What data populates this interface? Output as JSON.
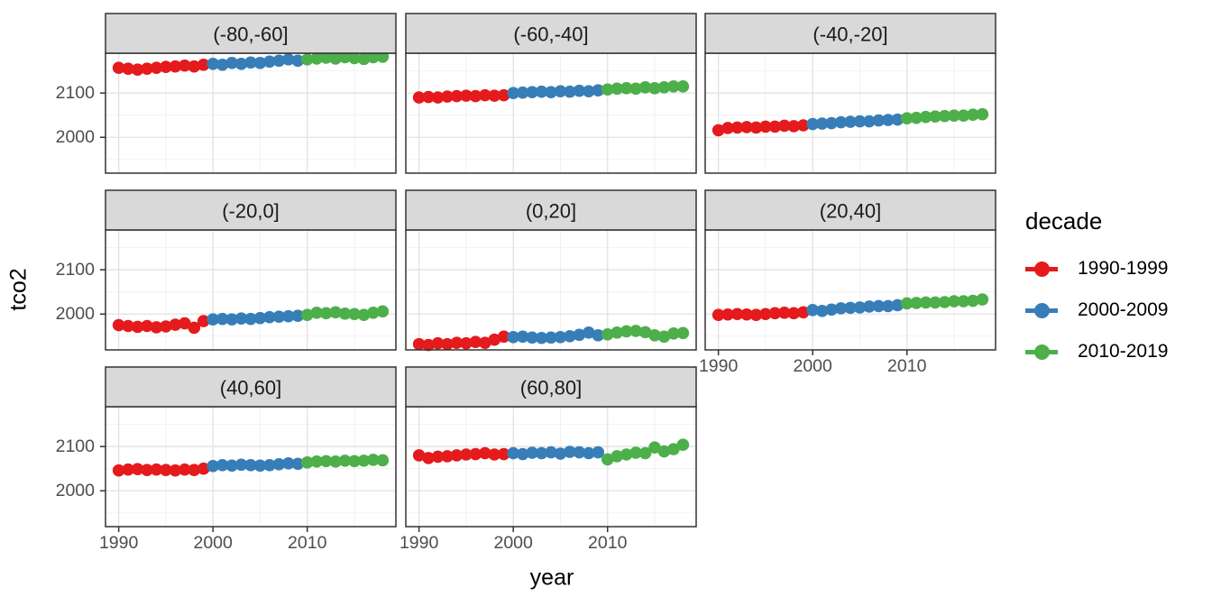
{
  "figure": {
    "x_axis_title": "year",
    "y_axis_title": "tco2"
  },
  "colors": {
    "red": "#E41A1C",
    "blue": "#377EB8",
    "green": "#4DAF4A",
    "strip_bg": "#D9D9D9",
    "strip_text": "#1A1A1A",
    "panel_bg": "#FFFFFF",
    "panel_border": "#333333",
    "grid_major": "#E2E2E2",
    "grid_minor": "#EFEFEF",
    "tick_mark": "#333333",
    "tick_label": "#4D4D4D"
  },
  "chart_data": {
    "type": "scatter",
    "title": "",
    "xlabel": "year",
    "ylabel": "tco2",
    "grid": true,
    "xlim": [
      1988.6,
      2019.4
    ],
    "ylim": [
      1919,
      2190
    ],
    "x_ticks": [
      1990,
      2000,
      2010
    ],
    "x_minor_ticks": [
      1995,
      2005,
      2015
    ],
    "y_ticks": [
      2000,
      2100
    ],
    "y_minor_ticks": [
      1950,
      2050,
      2150
    ],
    "x": [
      1990,
      1991,
      1992,
      1993,
      1994,
      1995,
      1996,
      1997,
      1998,
      1999,
      2000,
      2001,
      2002,
      2003,
      2004,
      2005,
      2006,
      2007,
      2008,
      2009,
      2010,
      2011,
      2012,
      2013,
      2014,
      2015,
      2016,
      2017,
      2018
    ],
    "legend": {
      "title": "decade",
      "position": "right",
      "entries": [
        {
          "label": "1990-1999",
          "color": "#E41A1C",
          "years": [
            1990,
            1999
          ]
        },
        {
          "label": "2000-2009",
          "color": "#377EB8",
          "years": [
            2000,
            2009
          ]
        },
        {
          "label": "2010-2019",
          "color": "#4DAF4A",
          "years": [
            2010,
            2019
          ]
        }
      ]
    },
    "facets": [
      {
        "label": "(-80,-60]",
        "values": [
          2157,
          2155,
          2153,
          2155,
          2157,
          2159,
          2160,
          2162,
          2160,
          2164,
          2166,
          2164,
          2168,
          2166,
          2169,
          2168,
          2171,
          2173,
          2176,
          2173,
          2176,
          2178,
          2180,
          2178,
          2181,
          2179,
          2177,
          2181,
          2182
        ]
      },
      {
        "label": "(-60,-40]",
        "values": [
          2090,
          2091,
          2090,
          2092,
          2093,
          2094,
          2093,
          2095,
          2094,
          2095,
          2100,
          2101,
          2102,
          2103,
          2102,
          2104,
          2103,
          2105,
          2104,
          2106,
          2108,
          2110,
          2111,
          2110,
          2113,
          2111,
          2113,
          2115,
          2115
        ]
      },
      {
        "label": "(-40,-20]",
        "values": [
          2016,
          2021,
          2022,
          2023,
          2022,
          2024,
          2024,
          2026,
          2025,
          2027,
          2030,
          2031,
          2032,
          2034,
          2035,
          2036,
          2036,
          2038,
          2039,
          2040,
          2043,
          2044,
          2046,
          2047,
          2048,
          2049,
          2049,
          2051,
          2052
        ]
      },
      {
        "label": "(-20,0]",
        "values": [
          1975,
          1973,
          1971,
          1973,
          1970,
          1972,
          1976,
          1979,
          1969,
          1984,
          1988,
          1989,
          1988,
          1990,
          1989,
          1991,
          1993,
          1994,
          1995,
          1996,
          1998,
          2003,
          2002,
          2004,
          2001,
          2000,
          1998,
          2003,
          2006
        ]
      },
      {
        "label": "(0,20]",
        "values": [
          1932,
          1930,
          1934,
          1932,
          1935,
          1934,
          1937,
          1935,
          1942,
          1949,
          1948,
          1949,
          1947,
          1946,
          1947,
          1948,
          1950,
          1953,
          1958,
          1952,
          1954,
          1958,
          1961,
          1962,
          1959,
          1952,
          1949,
          1956,
          1957
        ]
      },
      {
        "label": "(20,40]",
        "values": [
          1998,
          1999,
          2000,
          1999,
          1998,
          2000,
          2002,
          2003,
          2002,
          2004,
          2009,
          2007,
          2010,
          2013,
          2014,
          2015,
          2017,
          2018,
          2018,
          2020,
          2024,
          2025,
          2026,
          2026,
          2027,
          2029,
          2029,
          2030,
          2033
        ]
      },
      {
        "label": "(40,60]",
        "values": [
          2046,
          2048,
          2049,
          2047,
          2048,
          2047,
          2046,
          2048,
          2047,
          2050,
          2056,
          2058,
          2057,
          2059,
          2058,
          2057,
          2058,
          2060,
          2062,
          2061,
          2064,
          2066,
          2067,
          2066,
          2068,
          2067,
          2068,
          2070,
          2069
        ]
      },
      {
        "label": "(60,80]",
        "values": [
          2080,
          2074,
          2077,
          2078,
          2080,
          2082,
          2083,
          2085,
          2082,
          2083,
          2085,
          2083,
          2086,
          2085,
          2087,
          2084,
          2088,
          2087,
          2085,
          2087,
          2071,
          2078,
          2082,
          2086,
          2085,
          2098,
          2089,
          2094,
          2104
        ]
      }
    ]
  }
}
